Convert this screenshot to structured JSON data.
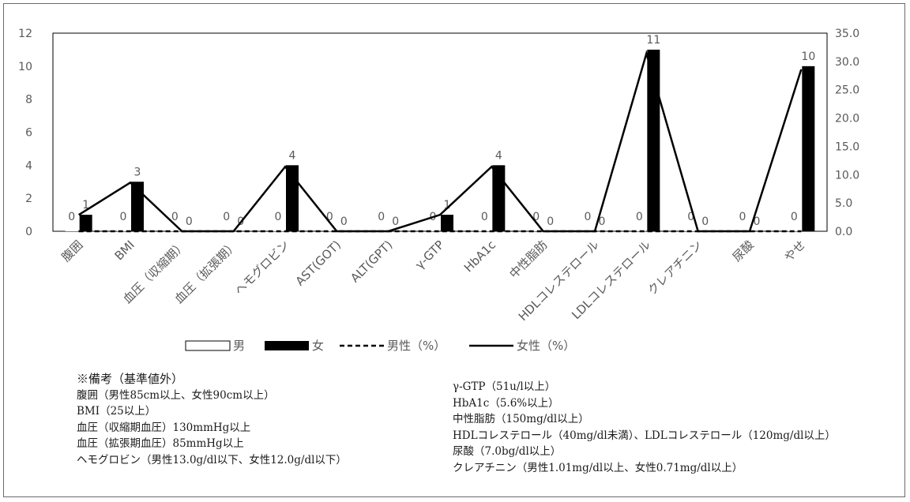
{
  "chart_data": {
    "type": "bar",
    "categories": [
      "腹囲",
      "BMI",
      "血圧（収縮期）",
      "血圧（拡張期）",
      "ヘモグロビン",
      "AST(GOT)",
      "ALT(GPT)",
      "γ-GTP",
      "HbA1c",
      "中性脂肪",
      "HDLコレステロール",
      "LDLコレステロール",
      "クレアチニン",
      "尿酸",
      "やせ"
    ],
    "series": [
      {
        "name": "男",
        "kind": "bar",
        "axis": "left",
        "values": [
          0,
          0,
          0,
          0,
          0,
          0,
          0,
          0,
          0,
          0,
          0,
          0,
          0,
          0,
          0
        ],
        "labels": [
          "0",
          "0",
          "0",
          "0",
          "0",
          "0",
          "0",
          "0",
          "0",
          "0",
          "0",
          "0",
          "0",
          "0",
          "0"
        ]
      },
      {
        "name": "女",
        "kind": "bar",
        "axis": "left",
        "values": [
          1,
          3,
          0,
          0,
          4,
          0,
          0,
          1,
          4,
          0,
          0,
          11,
          0,
          0,
          10
        ],
        "labels": [
          "1",
          "3",
          "0",
          "0",
          "4",
          "0",
          "0",
          "1",
          "4",
          "0",
          "0",
          "11",
          "0",
          "0",
          "10"
        ]
      },
      {
        "name": "男性（%）",
        "kind": "line",
        "style": "dashed",
        "axis": "right",
        "values": [
          0,
          0,
          0,
          0,
          0,
          0,
          0,
          0,
          0,
          0,
          0,
          0,
          0,
          0,
          0
        ]
      },
      {
        "name": "女性（%）",
        "kind": "line",
        "style": "solid",
        "axis": "right",
        "values": [
          2.9,
          8.6,
          0,
          0,
          11.4,
          0,
          0,
          2.9,
          11.4,
          0,
          0,
          31.4,
          0,
          0,
          28.6
        ]
      }
    ],
    "ylim": [
      0,
      12
    ],
    "yticks": [
      "0",
      "2",
      "4",
      "6",
      "8",
      "10",
      "12"
    ],
    "y2lim": [
      0,
      35
    ],
    "y2ticks": [
      "0.0",
      "5.0",
      "10.0",
      "15.0",
      "20.0",
      "25.0",
      "30.0",
      "35.0"
    ],
    "grid": false,
    "legend_position": "bottom",
    "colors": {
      "female_bar": "#000000",
      "male_bar": "#ffffff",
      "line": "#000000",
      "axis": "#000000",
      "text": "#595959"
    }
  },
  "notes": {
    "left": [
      "※備考（基準値外）",
      "腹囲（男性85cm以上、女性90cm以上）",
      "BMI（25以上）",
      "血圧（収縮期血圧）130mmHg以上",
      "血圧（拡張期血圧）85mmHg以上",
      "ヘモグロビン（男性13.0g/dl以下、女性12.0g/dl以下）"
    ],
    "right": [
      "γ-GTP（51u/l以上）",
      "HbA1c（5.6%以上）",
      "中性脂肪（150mg/dl以上）",
      "HDLコレステロール（40mg/dl未満）、LDLコレステロール（120mg/dl以上）",
      "尿酸（7.0bg/dl以上）",
      "クレアチニン（男性1.01mg/dl以上、女性0.71mg/dl以上）"
    ]
  }
}
